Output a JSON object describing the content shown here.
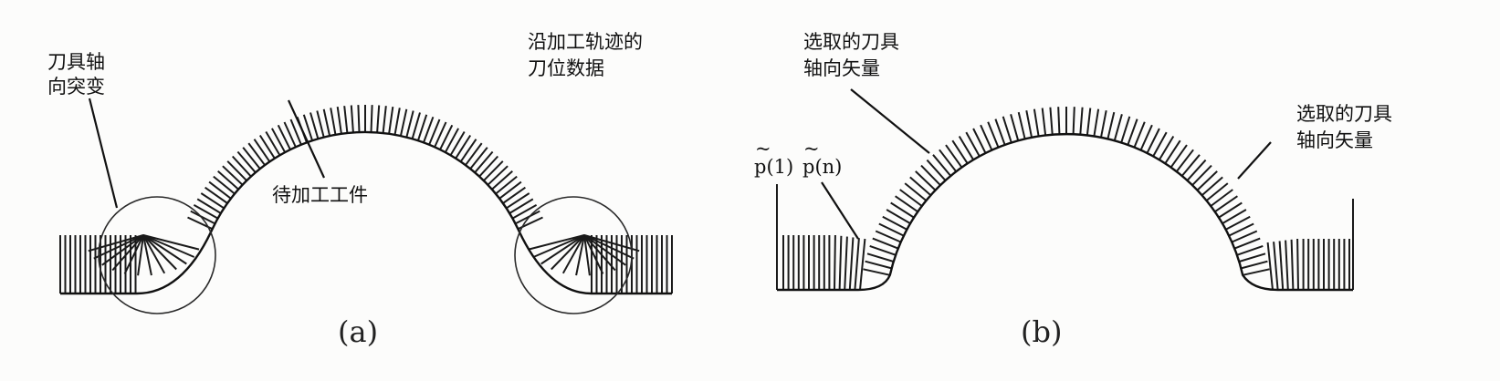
{
  "figure": {
    "panel_a": {
      "caption": "(a)",
      "labels": {
        "tool_axis_jump_line1": "刀具轴",
        "tool_axis_jump_line2": "向突变",
        "cl_data_line1": "沿加工轨迹的",
        "cl_data_line2": "刀位数据",
        "workpiece": "待加工工件"
      }
    },
    "panel_b": {
      "caption": "(b)",
      "labels": {
        "selected_axis_left_line1": "选取的刀具",
        "selected_axis_left_line2": "轴向矢量",
        "selected_axis_right_line1": "选取的刀具",
        "selected_axis_right_line2": "轴向矢量",
        "p1": "p(1)",
        "pn": "p(n)",
        "tilde": "~"
      }
    }
  }
}
